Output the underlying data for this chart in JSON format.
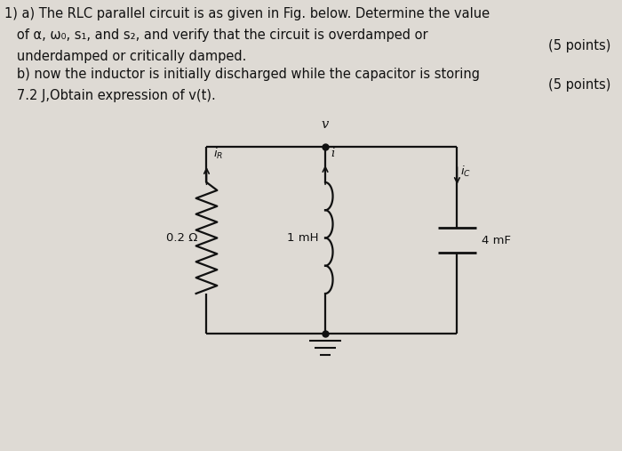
{
  "background_color": "#e8e6e2",
  "text_color": "#111111",
  "line1": "1) a) The RLC parallel circuit is as given in Fig. below. Determine the value",
  "line2": "   of α, ω₀, s₁, and s₂, and verify that the circuit is overdamped or",
  "line3": "   underdamped or critically damped.",
  "line4": "   b) now the inductor is initially discharged while the capacitor is storing",
  "line5": "   7.2 J,Obtain expression of v⁣(t).",
  "points1": "(5 points)",
  "points2": "(5 points)",
  "font_size_text": 10.5,
  "font_size_circ": 9.5,
  "bg": "#e0ddd8"
}
